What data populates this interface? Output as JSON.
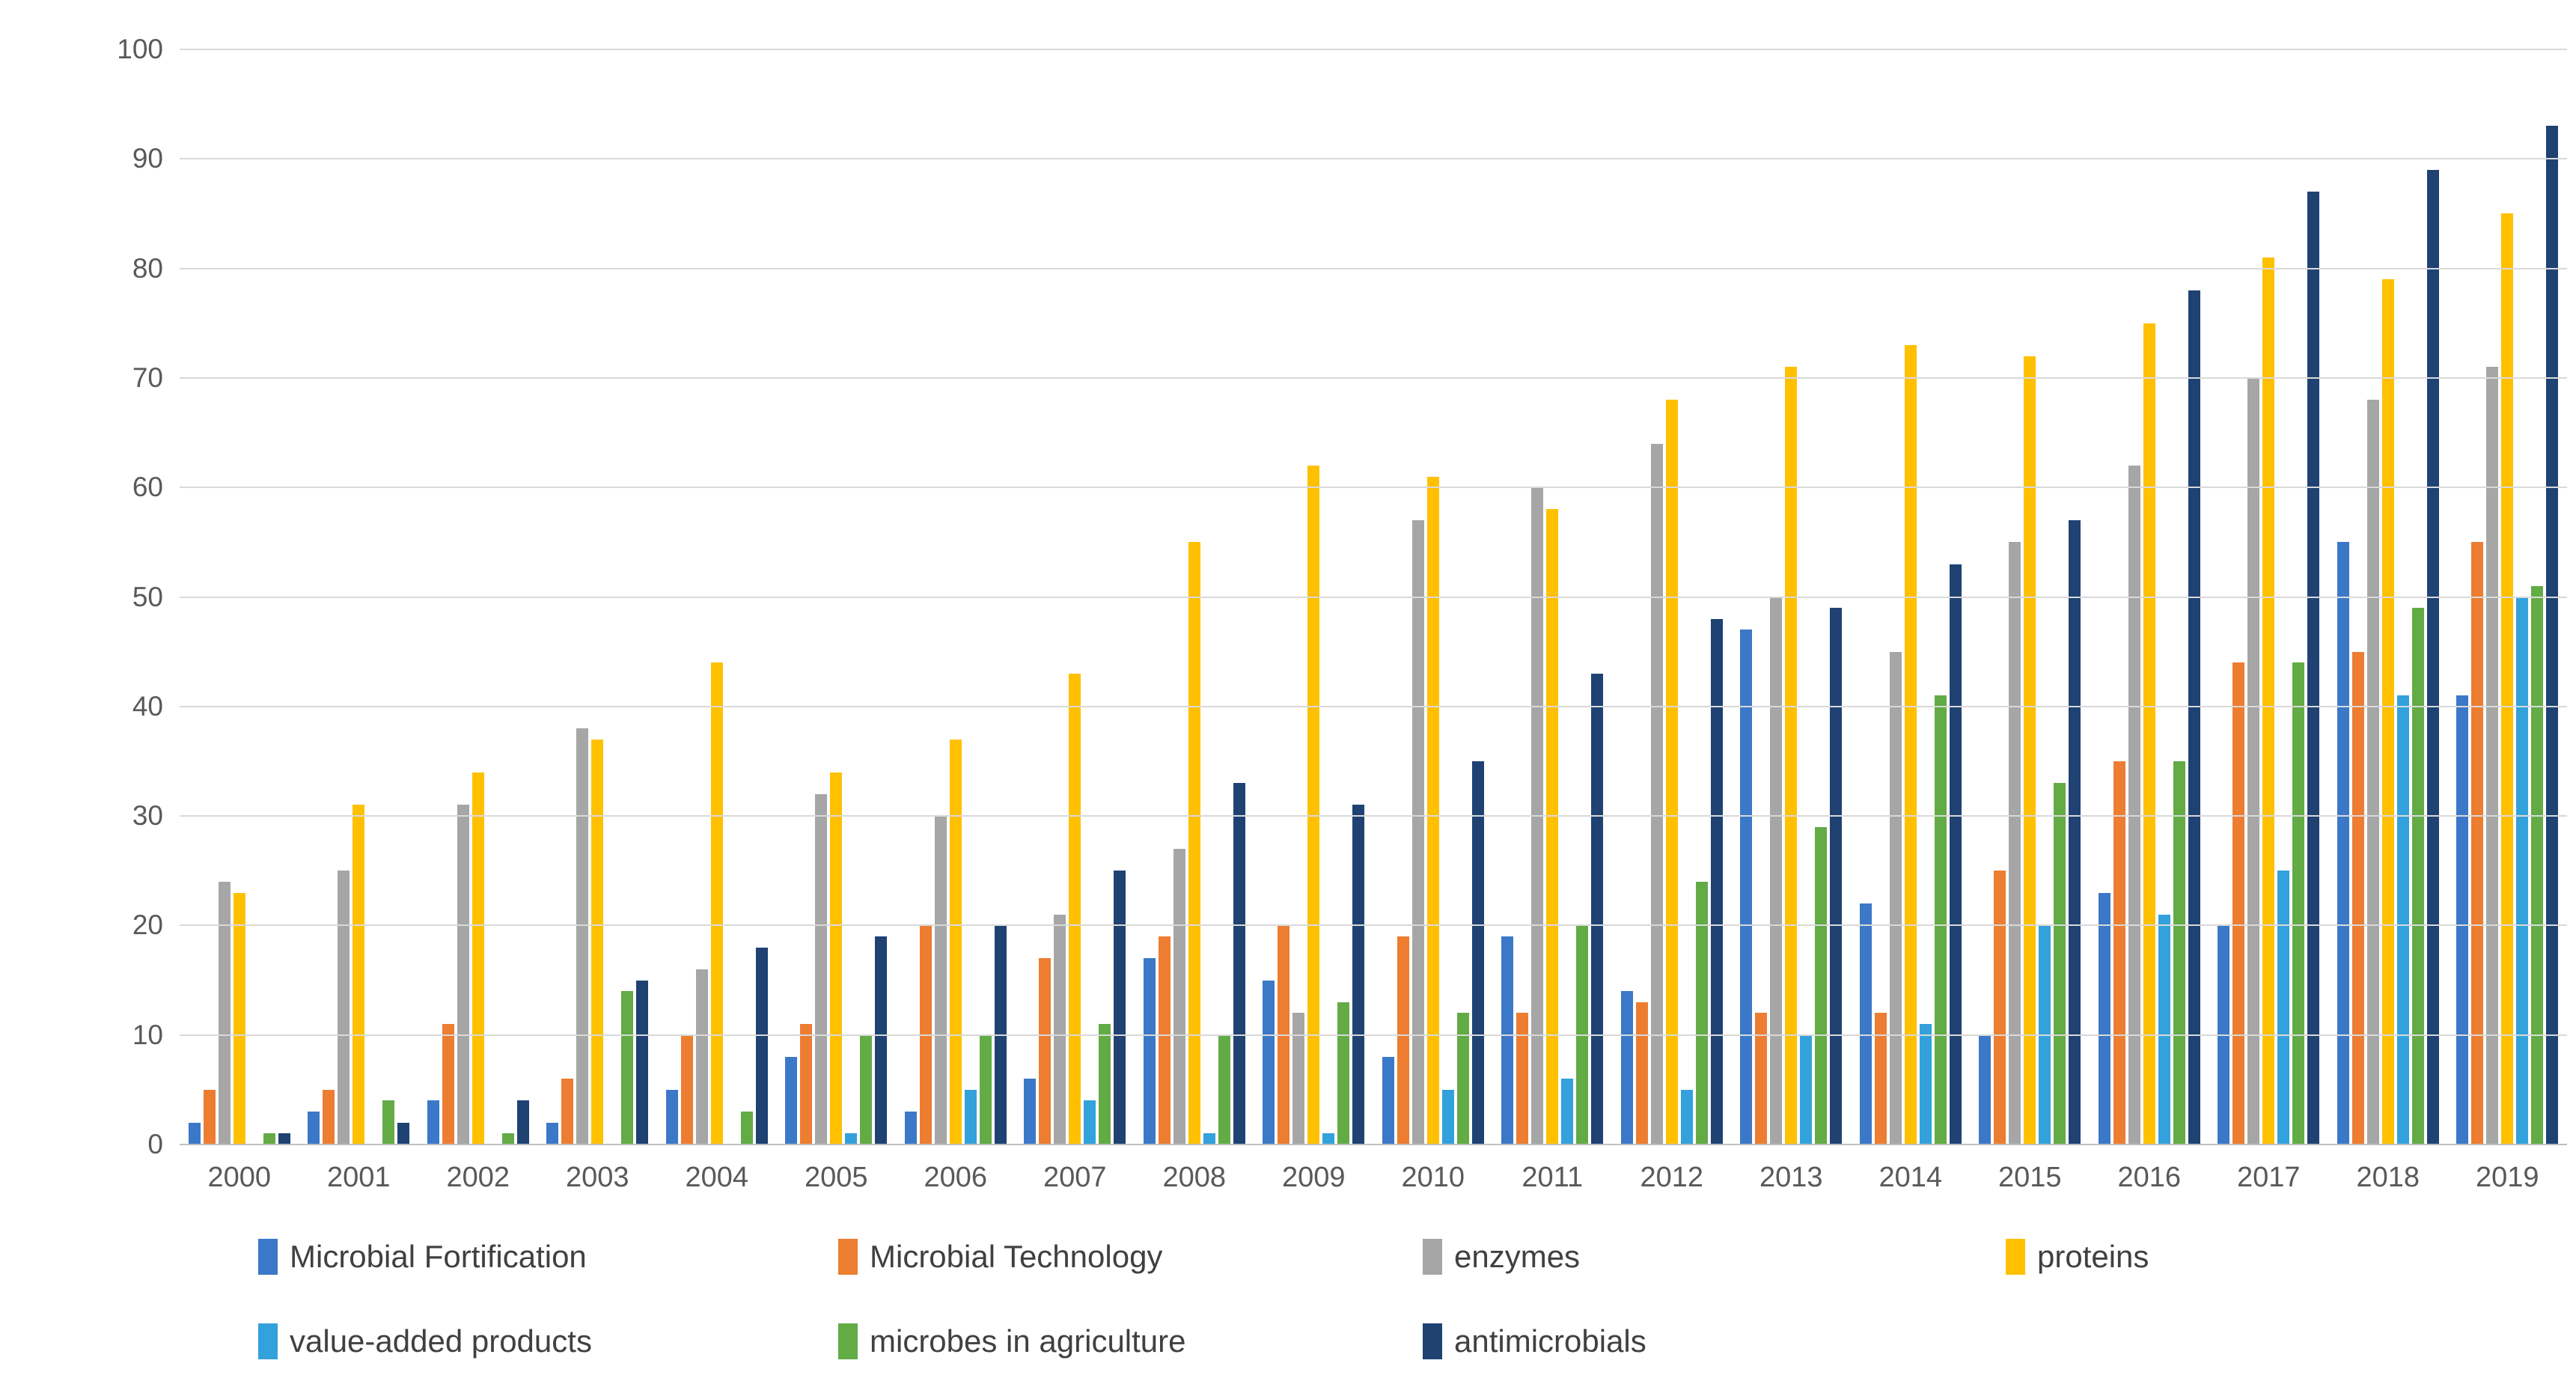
{
  "chart_data": {
    "type": "bar",
    "title": "",
    "xlabel": "",
    "ylabel": "",
    "grid": true,
    "legend_position": "bottom",
    "y_axis": {
      "min": 0,
      "max": 100,
      "step": 10
    },
    "categories": [
      "2000",
      "2001",
      "2002",
      "2003",
      "2004",
      "2005",
      "2006",
      "2007",
      "2008",
      "2009",
      "2010",
      "2011",
      "2012",
      "2013",
      "2014",
      "2015",
      "2016",
      "2017",
      "2018",
      "2019"
    ],
    "series": [
      {
        "name": "Microbial Fortification",
        "color": "#3B78C8",
        "values": [
          2,
          3,
          4,
          2,
          5,
          8,
          3,
          6,
          17,
          15,
          8,
          19,
          14,
          47,
          22,
          10,
          23,
          20,
          55,
          41
        ]
      },
      {
        "name": "Microbial Technology",
        "color": "#ED7D31",
        "values": [
          5,
          5,
          11,
          6,
          10,
          11,
          20,
          17,
          19,
          20,
          19,
          12,
          13,
          12,
          12,
          25,
          35,
          44,
          45,
          55
        ]
      },
      {
        "name": "enzymes",
        "color": "#A6A6A6",
        "values": [
          24,
          25,
          31,
          38,
          16,
          32,
          30,
          21,
          27,
          12,
          57,
          60,
          64,
          50,
          45,
          55,
          62,
          70,
          68,
          71
        ]
      },
      {
        "name": "proteins",
        "color": "#FFC000",
        "values": [
          23,
          31,
          34,
          37,
          44,
          34,
          37,
          43,
          55,
          62,
          61,
          58,
          68,
          71,
          73,
          72,
          75,
          81,
          79,
          85
        ]
      },
      {
        "name": "value-added products",
        "color": "#33A1DB",
        "values": [
          0,
          0,
          0,
          0,
          0,
          1,
          5,
          4,
          1,
          1,
          5,
          6,
          5,
          10,
          11,
          20,
          21,
          25,
          41,
          50
        ]
      },
      {
        "name": "microbes in agriculture",
        "color": "#62AB45",
        "values": [
          1,
          4,
          1,
          14,
          3,
          10,
          10,
          11,
          10,
          13,
          12,
          20,
          24,
          29,
          41,
          33,
          35,
          44,
          49,
          51
        ]
      },
      {
        "name": "antimicrobials",
        "color": "#1F4273",
        "values": [
          1,
          2,
          4,
          15,
          18,
          19,
          20,
          25,
          33,
          31,
          35,
          43,
          48,
          49,
          53,
          57,
          78,
          87,
          89,
          93
        ]
      }
    ],
    "legend_rows": [
      [
        0,
        1,
        2,
        3
      ],
      [
        4,
        5,
        6
      ]
    ]
  }
}
